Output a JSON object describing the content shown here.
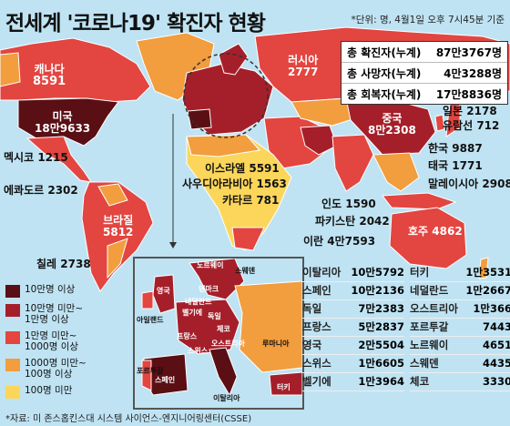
{
  "title": "전세계 '코로나19' 확진자 현황",
  "unit_note": "*단위: 명, 4월1일 오후 7시45분 기준",
  "totals": [
    {
      "label": "총 확진자(누계)",
      "value": "87만3767명"
    },
    {
      "label": "총 사망자(누계)",
      "value": "4만3288명"
    },
    {
      "label": "총 회복자(누계)",
      "value": "17만8836명"
    }
  ],
  "colors": {
    "c1": "#5a0f14",
    "c2": "#a51f2a",
    "c3": "#e34540",
    "c4": "#f29d3e",
    "c5": "#fbd65a",
    "ocean": "#bfe3f3"
  },
  "legend": [
    {
      "label": "10만명 이상",
      "color": "#5a0f14"
    },
    {
      "label": "10만명 미만~\n1만명 이상",
      "color": "#a51f2a"
    },
    {
      "label": "1만명 미만~\n1000명 이상",
      "color": "#e34540"
    },
    {
      "label": "1000명 미만~\n100명 이상",
      "color": "#f29d3e"
    },
    {
      "label": "100명 미만",
      "color": "#fbd65a"
    }
  ],
  "map_labels": {
    "canada": "캐나다",
    "canada_v": "8591",
    "usa": "미국",
    "usa_v": "18만9633",
    "mexico": "멕시코",
    "mexico_v": "1215",
    "ecuador": "에콰도르",
    "ecuador_v": "2302",
    "brazil": "브라질",
    "brazil_v": "5812",
    "chile": "칠레",
    "chile_v": "2738",
    "russia": "러시아",
    "russia_v": "2777",
    "china": "중국",
    "china_v": "8만2308",
    "japan": "일본",
    "japan_v": "2178",
    "cruise": "유람선",
    "cruise_v": "712",
    "korea": "한국",
    "korea_v": "9887",
    "thailand": "태국",
    "thailand_v": "1771",
    "malaysia": "말레이시아",
    "malaysia_v": "2908",
    "israel": "이스라엘",
    "israel_v": "5591",
    "saudi": "사우디아라비아",
    "saudi_v": "1563",
    "qatar": "카타르",
    "qatar_v": "781",
    "india": "인도",
    "india_v": "1590",
    "pakistan": "파키스탄",
    "pakistan_v": "2042",
    "iran": "이란",
    "iran_v": "4만7593",
    "australia": "호주",
    "australia_v": "4862"
  },
  "inset_labels": [
    "노르웨이",
    "스웨덴",
    "영국",
    "덴마크",
    "네덜란드",
    "벨기에",
    "아일랜드",
    "독일",
    "프랑스",
    "스위스",
    "체코",
    "오스트리아",
    "루마니아",
    "포르투갈",
    "스페인",
    "이탈리아",
    "터키"
  ],
  "table_left": [
    {
      "country": "이탈리아",
      "value": "10만5792"
    },
    {
      "country": "스페인",
      "value": "10만2136"
    },
    {
      "country": "독일",
      "value": "7만2383"
    },
    {
      "country": "프랑스",
      "value": "5만2837"
    },
    {
      "country": "영국",
      "value": "2만5504"
    },
    {
      "country": "스위스",
      "value": "1만6605"
    },
    {
      "country": "벨기에",
      "value": "1만3964"
    }
  ],
  "table_right": [
    {
      "country": "터키",
      "value": "1만3531"
    },
    {
      "country": "네덜란드",
      "value": "1만2667"
    },
    {
      "country": "오스트리아",
      "value": "1만366"
    },
    {
      "country": "포르투갈",
      "value": "7443"
    },
    {
      "country": "노르웨이",
      "value": "4651"
    },
    {
      "country": "스웨덴",
      "value": "4435"
    },
    {
      "country": "체코",
      "value": "3330"
    }
  ],
  "source": "*자료: 미 존스홉킨스대 시스템 사이언스-엔지니어링센터(CSSE)"
}
